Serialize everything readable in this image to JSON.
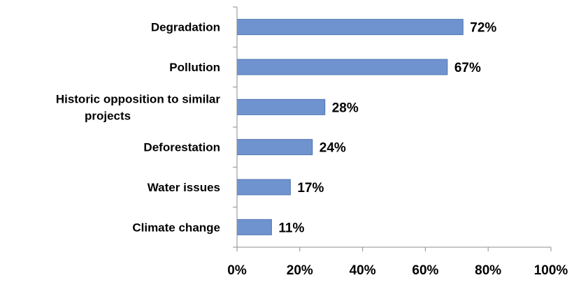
{
  "chart_data": {
    "type": "bar",
    "orientation": "horizontal",
    "categories": [
      "Degradation",
      "Pollution",
      "Historic opposition to similar projects",
      "Deforestation",
      "Water issues",
      "Climate change"
    ],
    "category_lines": [
      [
        "Degradation"
      ],
      [
        "Pollution"
      ],
      [
        "Historic opposition to similar",
        "projects"
      ],
      [
        "Deforestation"
      ],
      [
        "Water issues"
      ],
      [
        "Climate change"
      ]
    ],
    "values": [
      72,
      67,
      28,
      24,
      17,
      11
    ],
    "data_labels": [
      "72%",
      "67%",
      "28%",
      "24%",
      "17%",
      "11%"
    ],
    "x_ticks": [
      0,
      20,
      40,
      60,
      80,
      100
    ],
    "x_tick_labels": [
      "0%",
      "20%",
      "40%",
      "60%",
      "80%",
      "100%"
    ],
    "xlim": [
      0,
      100
    ],
    "title": "",
    "xlabel": "",
    "ylabel": "",
    "grid": false,
    "legend": "none",
    "colors": {
      "bar": "#6f93ce",
      "bar_edge": "#4f74b3",
      "axis": "#8c8c8c",
      "text": "#000000"
    }
  }
}
